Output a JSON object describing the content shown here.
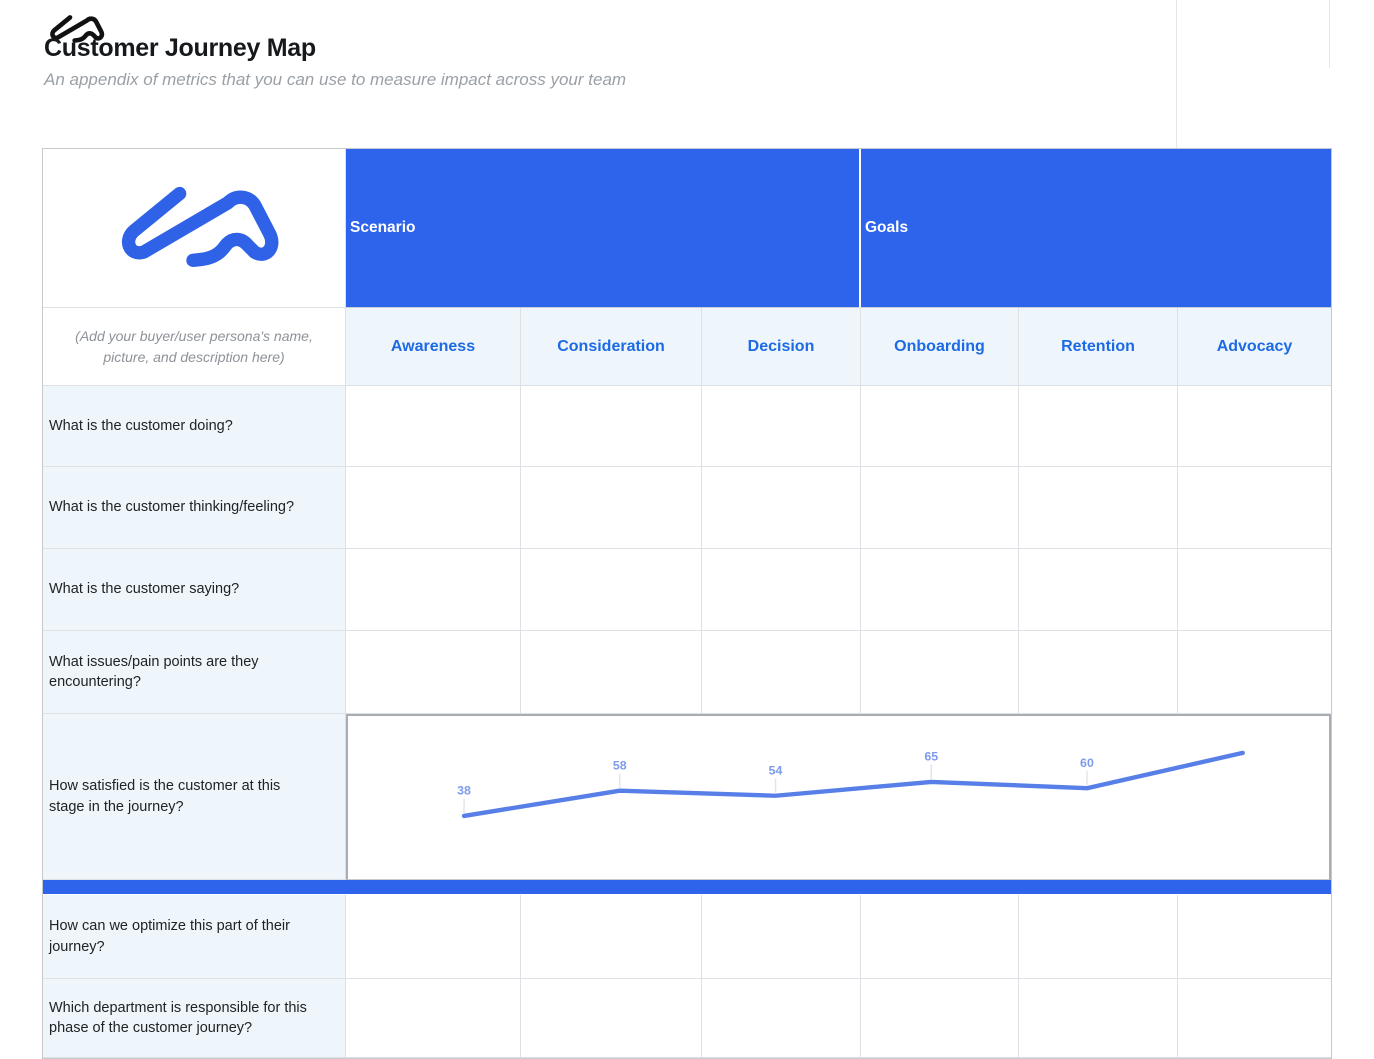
{
  "page": {
    "title": "Customer Journey Map",
    "subtitle": "An appendix of metrics that you can use to measure impact across your team",
    "brand_color": "#2e63ec"
  },
  "table": {
    "group_headers": [
      {
        "label": "Scenario"
      },
      {
        "label": "Goals"
      }
    ],
    "persona_placeholder": "(Add your buyer/user persona's name, picture, and description here)",
    "stages": [
      "Awareness",
      "Consideration",
      "Decision",
      "Onboarding",
      "Retention",
      "Advocacy"
    ],
    "questions": [
      "What is the customer doing?",
      "What is the customer thinking/feeling?",
      "What is the customer saying?",
      "What issues/pain points are they encountering?",
      "How satisfied is the customer at this stage in the journey?",
      "How can we optimize this part of their journey?",
      "Which department is responsible for this phase of the customer journey?"
    ],
    "section_divider_color": "#2e63ec"
  },
  "chart_data": {
    "type": "line",
    "title": "",
    "x": [
      "Awareness",
      "Consideration",
      "Decision",
      "Onboarding",
      "Retention",
      "Advocacy"
    ],
    "values": [
      38,
      58,
      54,
      65,
      60,
      88
    ],
    "data_labels": [
      "38",
      "58",
      "54",
      "65",
      "60",
      ""
    ],
    "line_color": "#587fe7",
    "label_color": "#7f9aea",
    "grid": false,
    "legend": "none",
    "ylim": [
      30,
      100
    ]
  },
  "colors": {
    "header_blue": "#2e63ec",
    "stage_text_blue": "#1d6ae5",
    "light_blue_bg": "#eff6fb",
    "border_gray": "#dde1e5"
  }
}
